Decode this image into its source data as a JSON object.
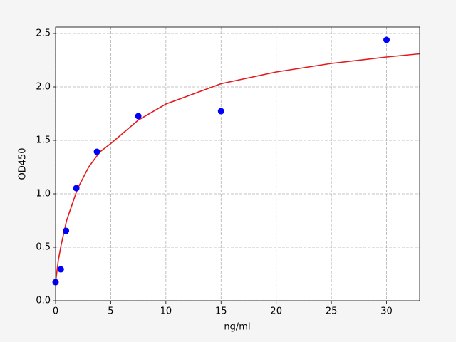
{
  "chart_data": {
    "type": "scatter",
    "x_label": "ng/ml",
    "y_label": "OD450",
    "xlim": [
      0,
      33
    ],
    "ylim": [
      0,
      2.56
    ],
    "xticks": [
      0,
      5,
      10,
      15,
      20,
      25,
      30
    ],
    "yticks": [
      {
        "value": 0,
        "label": "0.0"
      },
      {
        "value": 0.5,
        "label": "0.5"
      },
      {
        "value": 1,
        "label": "1.0"
      },
      {
        "value": 1.5,
        "label": "1.5"
      },
      {
        "value": 2,
        "label": "2.0"
      },
      {
        "value": 2.5,
        "label": "2.5"
      }
    ],
    "grid": true,
    "series": [
      {
        "type": "line",
        "color": "#e31a1c",
        "x": [
          0,
          0.25,
          0.5,
          1,
          2,
          3,
          4,
          5,
          7.5,
          10,
          15,
          20,
          25,
          30,
          33
        ],
        "values": [
          0.17,
          0.38,
          0.52,
          0.75,
          1.05,
          1.25,
          1.39,
          1.47,
          1.69,
          1.84,
          2.03,
          2.14,
          2.22,
          2.28,
          2.31
        ]
      },
      {
        "type": "scatter",
        "color": "#0000ff",
        "x": [
          0,
          0.47,
          0.94,
          1.88,
          3.75,
          7.5,
          15,
          30
        ],
        "values": [
          0.173,
          0.293,
          0.653,
          1.053,
          1.393,
          1.727,
          1.773,
          2.44
        ]
      }
    ]
  }
}
